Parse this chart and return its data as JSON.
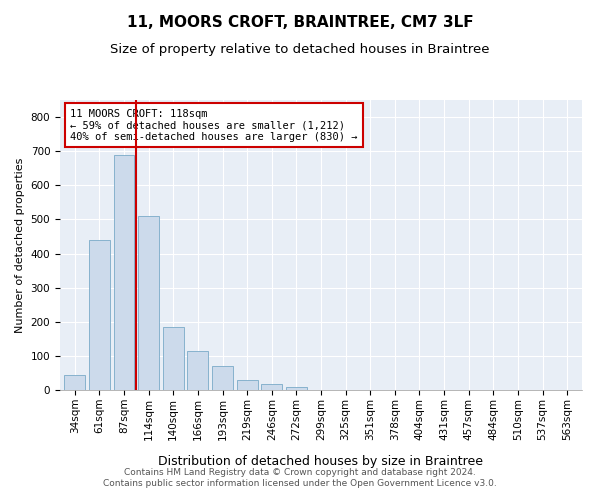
{
  "title": "11, MOORS CROFT, BRAINTREE, CM7 3LF",
  "subtitle": "Size of property relative to detached houses in Braintree",
  "xlabel": "Distribution of detached houses by size in Braintree",
  "ylabel": "Number of detached properties",
  "bar_color": "#ccdaeb",
  "bar_edge_color": "#7aaac8",
  "background_color": "#e8eef6",
  "grid_color": "#ffffff",
  "categories": [
    "34sqm",
    "61sqm",
    "87sqm",
    "114sqm",
    "140sqm",
    "166sqm",
    "193sqm",
    "219sqm",
    "246sqm",
    "272sqm",
    "299sqm",
    "325sqm",
    "351sqm",
    "378sqm",
    "404sqm",
    "431sqm",
    "457sqm",
    "484sqm",
    "510sqm",
    "537sqm",
    "563sqm"
  ],
  "values": [
    45,
    440,
    690,
    510,
    185,
    115,
    70,
    30,
    17,
    8,
    1,
    0,
    0,
    0,
    0,
    0,
    0,
    0,
    0,
    0,
    0
  ],
  "ylim": [
    0,
    850
  ],
  "yticks": [
    0,
    100,
    200,
    300,
    400,
    500,
    600,
    700,
    800
  ],
  "vline_x": 2.5,
  "vline_color": "#cc0000",
  "annotation_text": "11 MOORS CROFT: 118sqm\n← 59% of detached houses are smaller (1,212)\n40% of semi-detached houses are larger (830) →",
  "annotation_box_color": "#cc0000",
  "footer_text": "Contains HM Land Registry data © Crown copyright and database right 2024.\nContains public sector information licensed under the Open Government Licence v3.0.",
  "title_fontsize": 11,
  "subtitle_fontsize": 9.5,
  "xlabel_fontsize": 9,
  "ylabel_fontsize": 8,
  "tick_fontsize": 7.5,
  "annotation_fontsize": 7.5,
  "footer_fontsize": 6.5
}
